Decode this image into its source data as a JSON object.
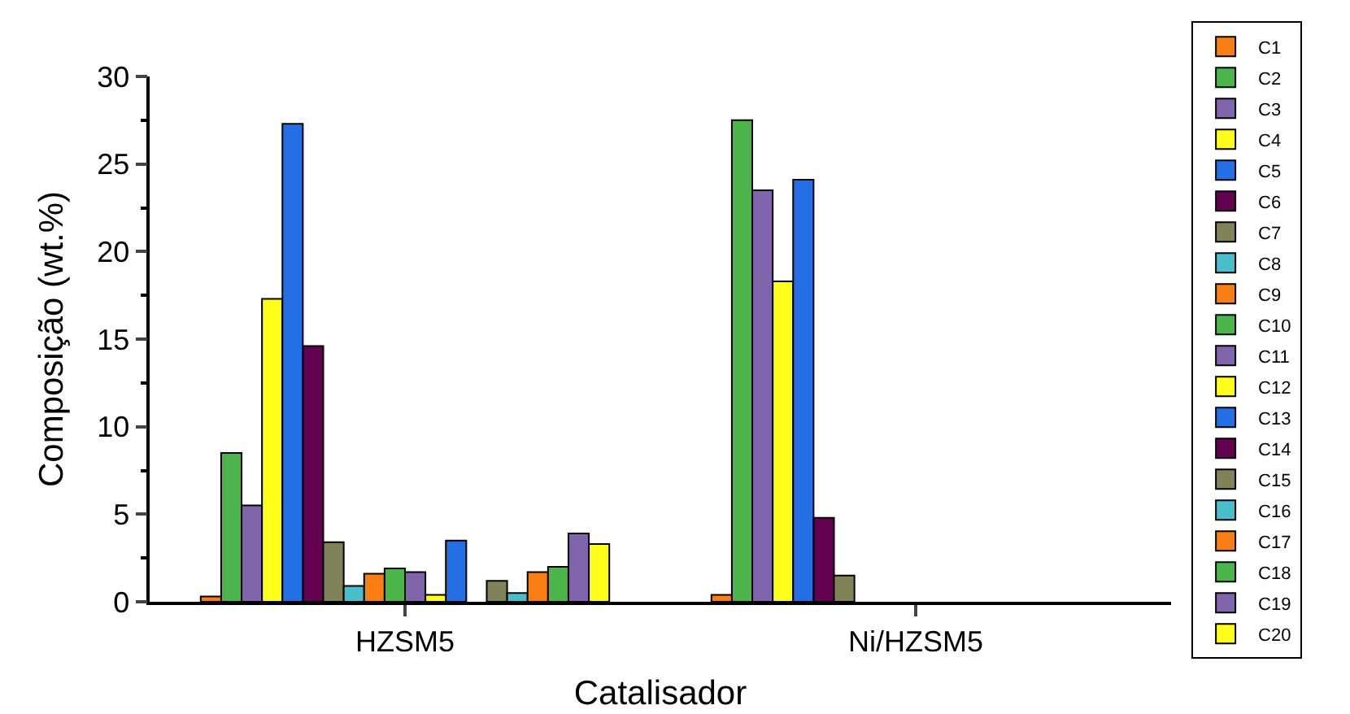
{
  "chart_data": {
    "type": "bar",
    "xlabel": "Catalisador",
    "ylabel": "Composição (wt.%)",
    "categories": [
      "HZSM5",
      "Ni/HZSM5"
    ],
    "ylim": [
      0,
      30
    ],
    "yticks": [
      0,
      5,
      10,
      15,
      20,
      25,
      30
    ],
    "legend": "right",
    "series": [
      {
        "name": "C1",
        "color": "#fb7e14",
        "values": [
          0.3,
          0.4
        ]
      },
      {
        "name": "C2",
        "color": "#4bb44b",
        "values": [
          8.5,
          27.5
        ]
      },
      {
        "name": "C3",
        "color": "#8064ac",
        "values": [
          5.5,
          23.5
        ]
      },
      {
        "name": "C4",
        "color": "#ffff19",
        "values": [
          17.3,
          18.3
        ]
      },
      {
        "name": "C5",
        "color": "#246ee6",
        "values": [
          27.3,
          24.1
        ]
      },
      {
        "name": "C6",
        "color": "#640050",
        "values": [
          14.6,
          4.8
        ]
      },
      {
        "name": "C7",
        "color": "#828259",
        "values": [
          3.4,
          1.5
        ]
      },
      {
        "name": "C8",
        "color": "#4bbecc",
        "values": [
          0.9,
          null
        ]
      },
      {
        "name": "C9",
        "color": "#fb7e14",
        "values": [
          1.6,
          null
        ]
      },
      {
        "name": "C10",
        "color": "#4bb44b",
        "values": [
          1.9,
          null
        ]
      },
      {
        "name": "C11",
        "color": "#8064ac",
        "values": [
          1.7,
          null
        ]
      },
      {
        "name": "C12",
        "color": "#ffff19",
        "values": [
          0.4,
          null
        ]
      },
      {
        "name": "C13",
        "color": "#246ee6",
        "values": [
          3.5,
          null
        ]
      },
      {
        "name": "C14",
        "color": "#640050",
        "values": [
          null,
          null
        ]
      },
      {
        "name": "C15",
        "color": "#828259",
        "values": [
          1.2,
          null
        ]
      },
      {
        "name": "C16",
        "color": "#4bbecc",
        "values": [
          0.5,
          null
        ]
      },
      {
        "name": "C17",
        "color": "#fb7e14",
        "values": [
          1.7,
          null
        ]
      },
      {
        "name": "C18",
        "color": "#4bb44b",
        "values": [
          2.0,
          null
        ]
      },
      {
        "name": "C19",
        "color": "#8064ac",
        "values": [
          3.9,
          null
        ]
      },
      {
        "name": "C20",
        "color": "#ffff19",
        "values": [
          3.3,
          null
        ]
      }
    ]
  }
}
